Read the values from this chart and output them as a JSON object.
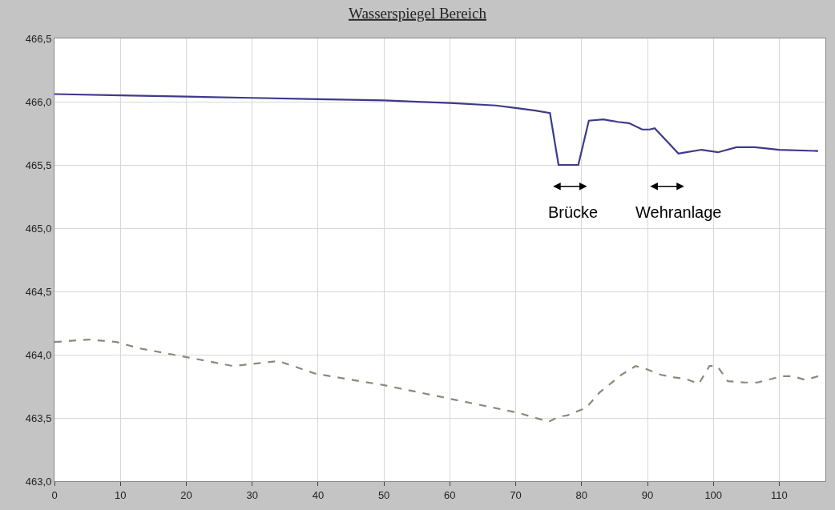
{
  "chart_data": {
    "type": "line",
    "title": "Wasserspiegel Bereich",
    "xlim": [
      0,
      117
    ],
    "xticks": [
      0,
      10,
      20,
      30,
      40,
      50,
      60,
      70,
      80,
      90,
      100,
      110
    ],
    "ylim": [
      463.0,
      466.5
    ],
    "yticks": [
      {
        "value": 463.0,
        "label": "463,0"
      },
      {
        "value": 463.5,
        "label": "463,5"
      },
      {
        "value": 464.0,
        "label": "464,0"
      },
      {
        "value": 464.5,
        "label": "464,5"
      },
      {
        "value": 465.0,
        "label": "465,0"
      },
      {
        "value": 465.5,
        "label": "465,5"
      },
      {
        "value": 466.0,
        "label": "466,0"
      },
      {
        "value": 466.5,
        "label": "466,5"
      }
    ],
    "grid": true,
    "marker": "none",
    "series": [
      {
        "color": "#3d3a8a",
        "line_style": "solid",
        "x": [
          0,
          10,
          20,
          30,
          40,
          50,
          60,
          67,
          70,
          73,
          75.2,
          76.5,
          79.5,
          81.1,
          83.3,
          85.5,
          87.2,
          89.2,
          90.3,
          91.1,
          94.7,
          95.9,
          98.2,
          100.7,
          103.5,
          106.3,
          110,
          115.9
        ],
        "values": [
          466.06,
          466.05,
          466.04,
          466.03,
          466.02,
          466.01,
          465.99,
          465.97,
          465.95,
          465.93,
          465.91,
          465.5,
          465.5,
          465.85,
          465.86,
          465.84,
          465.83,
          465.78,
          465.78,
          465.79,
          465.59,
          465.6,
          465.62,
          465.6,
          465.64,
          465.64,
          465.62,
          465.61
        ]
      },
      {
        "color": "#8a8a7c",
        "line_style": "dashed",
        "x": [
          0,
          5.2,
          9.4,
          12.9,
          20.1,
          27.1,
          34.0,
          39.6,
          49.9,
          60.2,
          70.4,
          75.0,
          76.6,
          77.8,
          80.7,
          82.7,
          86.0,
          88.2,
          89.6,
          92.1,
          94.1,
          95.7,
          97.8,
          99.4,
          100.6,
          102.2,
          104.7,
          106.7,
          110.4,
          112.0,
          114.0,
          115.9
        ],
        "values": [
          464.1,
          464.12,
          464.1,
          464.05,
          463.98,
          463.91,
          463.95,
          463.85,
          463.76,
          463.65,
          463.54,
          463.47,
          463.51,
          463.52,
          463.58,
          463.7,
          463.84,
          463.91,
          463.89,
          463.84,
          463.82,
          463.81,
          463.77,
          463.91,
          463.91,
          463.79,
          463.78,
          463.78,
          463.83,
          463.83,
          463.8,
          463.83
        ]
      }
    ],
    "annotations": [
      "Brücke",
      "Wehranlage"
    ]
  }
}
